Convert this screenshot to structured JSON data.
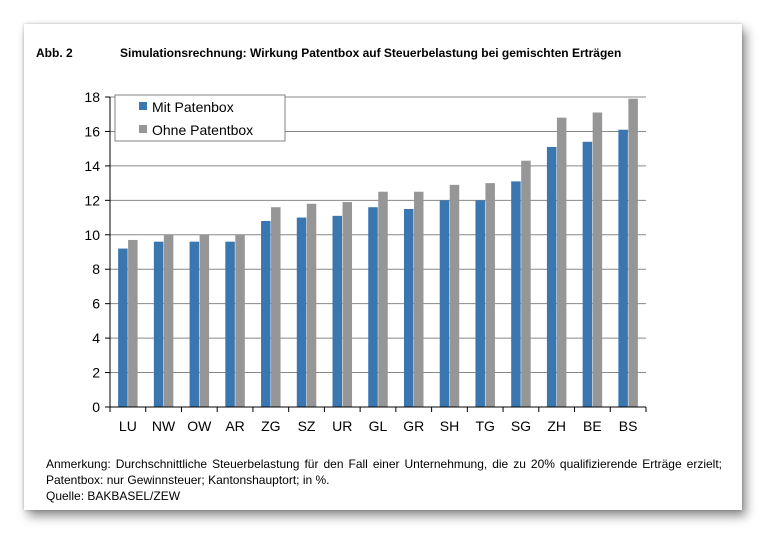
{
  "header": {
    "label": "Abb. 2",
    "title": "Simulationsrechnung: Wirkung Patentbox auf Steuerbelastung bei gemischten Erträgen"
  },
  "chart_data": {
    "type": "bar",
    "categories": [
      "LU",
      "NW",
      "OW",
      "AR",
      "ZG",
      "SZ",
      "UR",
      "GL",
      "GR",
      "SH",
      "TG",
      "SG",
      "ZH",
      "BE",
      "BS"
    ],
    "series": [
      {
        "name": "Mit Patenbox",
        "color": "#3a76b0",
        "values": [
          9.2,
          9.6,
          9.6,
          9.6,
          10.8,
          11.0,
          11.1,
          11.6,
          11.5,
          12.0,
          12.0,
          13.1,
          15.1,
          15.4,
          16.1
        ]
      },
      {
        "name": "Ohne Patentbox",
        "color": "#969696",
        "values": [
          9.7,
          10.0,
          10.0,
          10.0,
          11.6,
          11.8,
          11.9,
          12.5,
          12.5,
          12.9,
          13.0,
          14.3,
          16.8,
          17.1,
          17.9
        ]
      }
    ],
    "ylim": [
      0,
      18
    ],
    "yticks": [
      0,
      2,
      4,
      6,
      8,
      10,
      12,
      14,
      16,
      18
    ],
    "grid": true,
    "legend_position": "top-left",
    "xlabel": "",
    "ylabel": ""
  },
  "note": {
    "line1": "Anmerkung: Durchschnittliche Steuerbelastung für den Fall einer Unternehmung, die zu 20%  qualifizierende Erträge erzielt; Patentbox: nur Gewinnsteuer; Kantonshauptort; in %.",
    "source": "Quelle: BAKBASEL/ZEW"
  }
}
